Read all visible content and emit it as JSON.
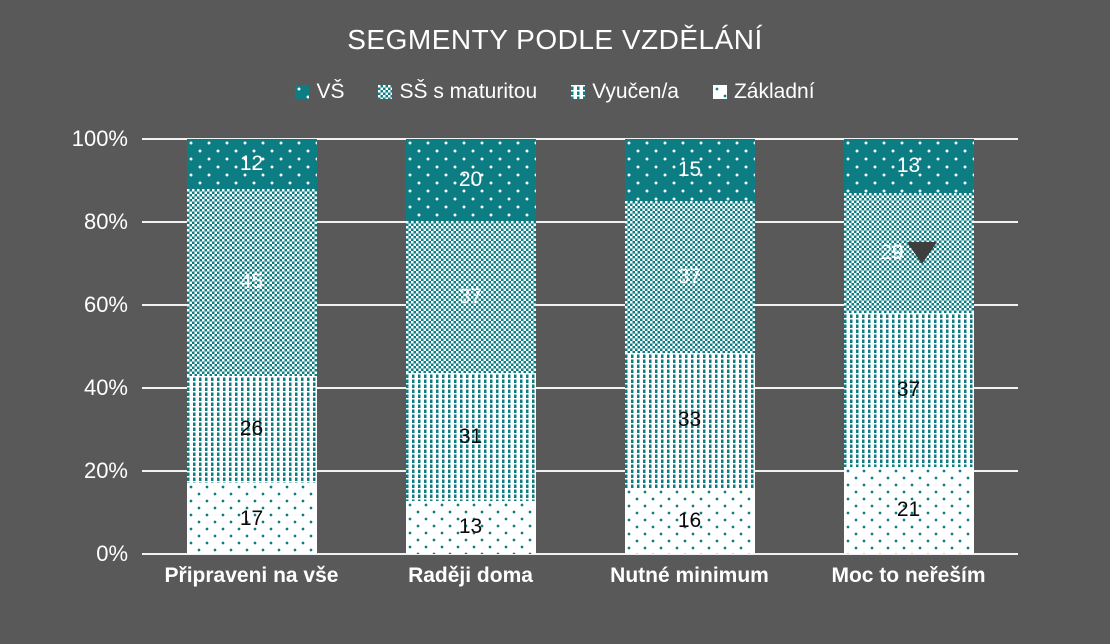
{
  "title": "SEGMENTY PODLE VZDĚLÁNÍ",
  "colors": {
    "background": "#595959",
    "accent_teal": "#0d7d84",
    "gridline": "#f2f2f2",
    "text_light": "#ffffff",
    "text_dark": "#0a0a0a",
    "marker": "#3e3e3e"
  },
  "chart_data": {
    "type": "bar",
    "variant": "stacked-100-percent-column",
    "title": "SEGMENTY PODLE VZDĚLÁNÍ",
    "categories": [
      "Připraveni na vše",
      "Raději doma",
      "Nutné minimum",
      "Moc to neřeším"
    ],
    "series": [
      {
        "name": "VŠ",
        "pattern": "white-dots-on-teal",
        "label_color": "#ffffff",
        "values": [
          12,
          20,
          15,
          13
        ]
      },
      {
        "name": "SŠ s maturitou",
        "pattern": "teal-white-checker",
        "label_color": "#ffffff",
        "values": [
          45,
          37,
          37,
          29
        ]
      },
      {
        "name": "Vyučen/a",
        "pattern": "teal-vertical-dashes",
        "label_color": "#0a0a0a",
        "values": [
          26,
          31,
          33,
          37
        ]
      },
      {
        "name": "Základní",
        "pattern": "sparse-teal-dots",
        "label_color": "#0a0a0a",
        "values": [
          17,
          13,
          16,
          21
        ]
      }
    ],
    "stack_order_top_to_bottom": [
      "VŠ",
      "SŠ s maturitou",
      "Vyučen/a",
      "Základní"
    ],
    "ylim": [
      0,
      100
    ],
    "y_ticks_percent": [
      0,
      20,
      40,
      60,
      80,
      100
    ],
    "y_tick_labels": [
      "0%",
      "20%",
      "40%",
      "60%",
      "80%",
      "100%"
    ],
    "grid": true,
    "legend_position": "top",
    "annotation": {
      "shape": "triangle-down",
      "color": "#3e3e3e",
      "category_index": 3,
      "series_index": 1,
      "category": "Moc to neřeším",
      "series": "SŠ s maturitou",
      "value_pointed_at": 29
    }
  }
}
